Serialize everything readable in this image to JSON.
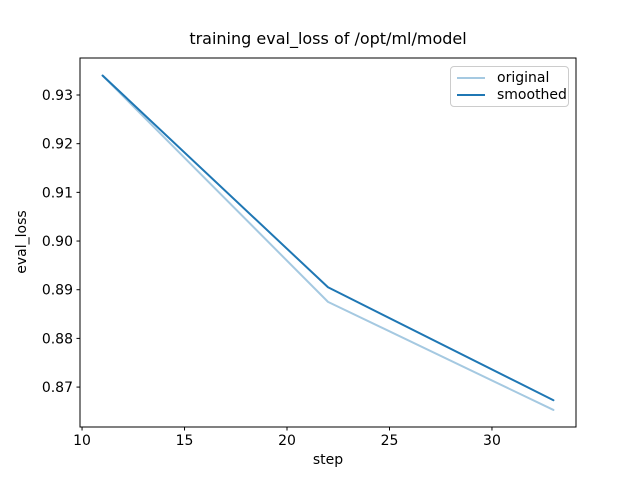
{
  "figure": {
    "background": "#ffffff",
    "axes_edge_color": "#000000",
    "text_color": "#000000",
    "legend_border_color": "#cccccc"
  },
  "chart_data": {
    "type": "line",
    "title": "training eval_loss of /opt/ml/model",
    "xlabel": "step",
    "ylabel": "eval_loss",
    "x": [
      11,
      22,
      33
    ],
    "series": [
      {
        "name": "original",
        "color": "#a5c9e1",
        "line_width": 2,
        "values": [
          0.934,
          0.8875,
          0.8653
        ]
      },
      {
        "name": "smoothed",
        "color": "#1f77b4",
        "line_width": 2,
        "values": [
          0.934,
          0.8905,
          0.8673
        ]
      }
    ],
    "xlim": [
      9.9,
      34.1
    ],
    "ylim": [
      0.8618,
      0.9376
    ],
    "xticks": {
      "values": [
        10,
        15,
        20,
        25,
        30
      ],
      "labels": [
        "10",
        "15",
        "20",
        "25",
        "30"
      ]
    },
    "yticks": {
      "values": [
        0.87,
        0.88,
        0.89,
        0.9,
        0.91,
        0.92,
        0.93
      ],
      "labels": [
        "0.87",
        "0.88",
        "0.89",
        "0.90",
        "0.91",
        "0.92",
        "0.93"
      ]
    },
    "grid": false,
    "legend": {
      "position": "upper right",
      "entries": [
        "original",
        "smoothed"
      ]
    }
  }
}
